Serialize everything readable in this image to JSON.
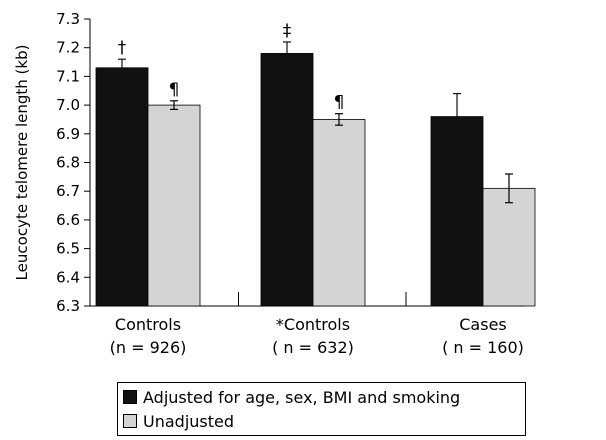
{
  "chart_data": {
    "type": "bar",
    "ylabel": "Leucocyte telomere length (kb)",
    "ylim": [
      6.3,
      7.3
    ],
    "yticks": [
      "6.3",
      "6.4",
      "6.5",
      "6.6",
      "6.7",
      "6.8",
      "6.9",
      "7.0",
      "7.1",
      "7.2",
      "7.3"
    ],
    "categories": [
      {
        "name": "Controls",
        "n": "(n = 926)"
      },
      {
        "name": "*Controls",
        "n": "( n = 632)"
      },
      {
        "name": "Cases",
        "n": "( n = 160)"
      }
    ],
    "series": [
      {
        "name": "Adjusted for age, sex, BMI and smoking",
        "color": "#111111",
        "values": [
          7.13,
          7.18,
          6.96
        ],
        "errors": [
          0.03,
          0.04,
          0.08
        ],
        "annotations": [
          "†",
          "‡",
          ""
        ]
      },
      {
        "name": "Unadjusted",
        "color": "#d4d4d4",
        "values": [
          7.0,
          6.95,
          6.71
        ],
        "errors": [
          0.015,
          0.02,
          0.05
        ],
        "annotations": [
          "¶",
          "¶",
          ""
        ]
      }
    ],
    "legend": "bottom"
  }
}
